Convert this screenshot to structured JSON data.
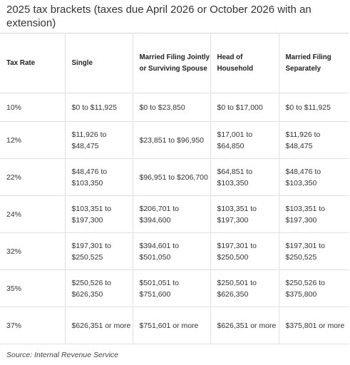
{
  "title": "2025 tax brackets (taxes due April 2026 or October 2026 with an extension)",
  "table": {
    "headers": [
      "Tax Rate",
      "Single",
      "Married Filing Jointly or Surviving Spouse",
      "Head of Household",
      "Married Filing Separately"
    ],
    "rows": [
      [
        "10%",
        "$0 to $11,925",
        "$0 to $23,850",
        "$0 to $17,000",
        "$0 to $11,925"
      ],
      [
        "12%",
        "$11,926 to $48,475",
        "$23,851 to $96,950",
        "$17,001 to $64,850",
        "$11,926 to $48,475"
      ],
      [
        "22%",
        "$48,476 to $103,350",
        "$96,951 to $206,700",
        "$64,851 to $103,350",
        "$48,476 to $103,350"
      ],
      [
        "24%",
        "$103,351 to $197,300",
        "$206,701 to $394,600",
        "$103,351 to $197,300",
        "$103,351 to $197,300"
      ],
      [
        "32%",
        "$197,301 to $250,525",
        "$394,601 to $501,050",
        "$197,301 to $250,500",
        "$197,301 to $250,525"
      ],
      [
        "35%",
        "$250,526 to $626,350",
        "$501,051 to $751,600",
        "$250,501 to $626,350",
        "$250,526 to $375,800"
      ],
      [
        "37%",
        "$626,351 or more",
        "$751,601 or more",
        "$626,351 or more",
        "$375,801 or more"
      ]
    ]
  },
  "source": "Source: Internal Revenue Service"
}
